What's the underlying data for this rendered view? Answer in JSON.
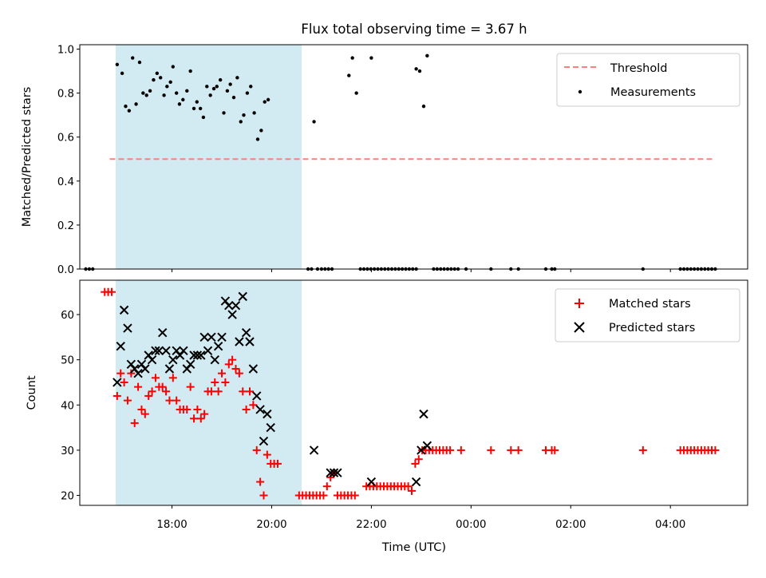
{
  "title": "Flux total observing time = 3.67 h",
  "xlabel": "Time (UTC)",
  "x_ticks": [
    "18:00",
    "20:00",
    "22:00",
    "00:00",
    "02:00",
    "04:00"
  ],
  "x_tick_hours": [
    18,
    20,
    22,
    24,
    26,
    28
  ],
  "xlim_hours": [
    16.15,
    29.55
  ],
  "shaded_interval_hours": [
    16.87,
    20.6
  ],
  "colors": {
    "shade": "#add8e6",
    "threshold": "#ff7f7f",
    "matched": "#ff0000",
    "predicted": "#000000",
    "measurement": "#000000"
  },
  "chart_data": [
    {
      "type": "scatter",
      "name": "ratio",
      "ylabel": "Matched/Predicted stars",
      "ylim": [
        0,
        1.02
      ],
      "y_ticks": [
        "0.0",
        "0.2",
        "0.4",
        "0.6",
        "0.8",
        "1.0"
      ],
      "y_tick_values": [
        0,
        0.2,
        0.4,
        0.6,
        0.8,
        1.0
      ],
      "legend": {
        "placement": "top-right",
        "entries": [
          "Threshold",
          "Measurements"
        ]
      },
      "threshold": {
        "name": "Threshold",
        "y": 0.5,
        "x_range": [
          16.75,
          28.9
        ]
      },
      "measurements": {
        "name": "Measurements",
        "points": [
          [
            16.9,
            0.93
          ],
          [
            17.0,
            0.89
          ],
          [
            17.07,
            0.74
          ],
          [
            17.14,
            0.72
          ],
          [
            17.21,
            0.96
          ],
          [
            17.28,
            0.75
          ],
          [
            17.35,
            0.94
          ],
          [
            17.42,
            0.8
          ],
          [
            17.49,
            0.79
          ],
          [
            17.56,
            0.81
          ],
          [
            17.63,
            0.86
          ],
          [
            17.7,
            0.89
          ],
          [
            17.77,
            0.87
          ],
          [
            17.84,
            0.79
          ],
          [
            17.9,
            0.83
          ],
          [
            17.97,
            0.85
          ],
          [
            18.02,
            0.92
          ],
          [
            18.09,
            0.8
          ],
          [
            18.15,
            0.75
          ],
          [
            18.22,
            0.77
          ],
          [
            18.3,
            0.81
          ],
          [
            18.37,
            0.9
          ],
          [
            18.44,
            0.73
          ],
          [
            18.5,
            0.76
          ],
          [
            18.57,
            0.73
          ],
          [
            18.63,
            0.69
          ],
          [
            18.7,
            0.83
          ],
          [
            18.77,
            0.79
          ],
          [
            18.84,
            0.82
          ],
          [
            18.9,
            0.83
          ],
          [
            18.97,
            0.86
          ],
          [
            19.04,
            0.71
          ],
          [
            19.11,
            0.81
          ],
          [
            19.17,
            0.84
          ],
          [
            19.24,
            0.78
          ],
          [
            19.31,
            0.87
          ],
          [
            19.38,
            0.67
          ],
          [
            19.44,
            0.7
          ],
          [
            19.51,
            0.8
          ],
          [
            19.58,
            0.83
          ],
          [
            19.65,
            0.71
          ],
          [
            19.72,
            0.59
          ],
          [
            19.79,
            0.63
          ],
          [
            19.86,
            0.76
          ],
          [
            19.93,
            0.77
          ],
          [
            20.85,
            0.67
          ],
          [
            21.55,
            0.88
          ],
          [
            21.62,
            0.96
          ],
          [
            21.7,
            0.8
          ],
          [
            22.0,
            0.96
          ],
          [
            22.9,
            0.91
          ],
          [
            22.97,
            0.9
          ],
          [
            23.05,
            0.74
          ],
          [
            23.12,
            0.97
          ],
          [
            16.27,
            0
          ],
          [
            16.34,
            0
          ],
          [
            16.41,
            0
          ],
          [
            20.73,
            0
          ],
          [
            20.8,
            0
          ],
          [
            20.92,
            0
          ],
          [
            21.0,
            0
          ],
          [
            21.07,
            0
          ],
          [
            21.14,
            0
          ],
          [
            21.21,
            0
          ],
          [
            21.78,
            0
          ],
          [
            21.85,
            0
          ],
          [
            21.92,
            0
          ],
          [
            21.99,
            0
          ],
          [
            22.06,
            0
          ],
          [
            22.13,
            0
          ],
          [
            22.2,
            0
          ],
          [
            22.27,
            0
          ],
          [
            22.34,
            0
          ],
          [
            22.41,
            0
          ],
          [
            22.48,
            0
          ],
          [
            22.55,
            0
          ],
          [
            22.62,
            0
          ],
          [
            22.69,
            0
          ],
          [
            22.76,
            0
          ],
          [
            22.83,
            0
          ],
          [
            22.9,
            0
          ],
          [
            23.25,
            0
          ],
          [
            23.32,
            0
          ],
          [
            23.39,
            0
          ],
          [
            23.46,
            0
          ],
          [
            23.53,
            0
          ],
          [
            23.6,
            0
          ],
          [
            23.67,
            0
          ],
          [
            23.74,
            0
          ],
          [
            23.9,
            0
          ],
          [
            24.4,
            0
          ],
          [
            24.8,
            0
          ],
          [
            24.95,
            0
          ],
          [
            25.5,
            0
          ],
          [
            25.62,
            0
          ],
          [
            25.68,
            0
          ],
          [
            27.45,
            0
          ],
          [
            28.2,
            0
          ],
          [
            28.27,
            0
          ],
          [
            28.34,
            0
          ],
          [
            28.41,
            0
          ],
          [
            28.48,
            0
          ],
          [
            28.55,
            0
          ],
          [
            28.62,
            0
          ],
          [
            28.69,
            0
          ],
          [
            28.76,
            0
          ],
          [
            28.83,
            0
          ],
          [
            28.9,
            0
          ]
        ]
      }
    },
    {
      "type": "scatter",
      "name": "counts",
      "ylabel": "Count",
      "ylim": [
        17.8,
        67.6
      ],
      "y_ticks": [
        "20",
        "30",
        "40",
        "50",
        "60"
      ],
      "y_tick_values": [
        20,
        30,
        40,
        50,
        60
      ],
      "legend": {
        "placement": "top-right",
        "entries": [
          "Matched stars",
          "Predicted stars"
        ]
      },
      "series": [
        {
          "name": "Matched stars",
          "marker": "plus",
          "points": [
            [
              16.65,
              65
            ],
            [
              16.72,
              65
            ],
            [
              16.79,
              65
            ],
            [
              16.9,
              42
            ],
            [
              16.97,
              47
            ],
            [
              17.04,
              45
            ],
            [
              17.11,
              41
            ],
            [
              17.18,
              47
            ],
            [
              17.25,
              36
            ],
            [
              17.32,
              44
            ],
            [
              17.39,
              39
            ],
            [
              17.46,
              38
            ],
            [
              17.53,
              42
            ],
            [
              17.6,
              43
            ],
            [
              17.67,
              46
            ],
            [
              17.74,
              44
            ],
            [
              17.81,
              44
            ],
            [
              17.88,
              43
            ],
            [
              17.95,
              41
            ],
            [
              18.02,
              46
            ],
            [
              18.09,
              41
            ],
            [
              18.16,
              39
            ],
            [
              18.23,
              39
            ],
            [
              18.3,
              39
            ],
            [
              18.37,
              44
            ],
            [
              18.44,
              37
            ],
            [
              18.51,
              39
            ],
            [
              18.58,
              37
            ],
            [
              18.65,
              38
            ],
            [
              18.72,
              43
            ],
            [
              18.79,
              43
            ],
            [
              18.86,
              45
            ],
            [
              18.93,
              43
            ],
            [
              19.0,
              47
            ],
            [
              19.07,
              45
            ],
            [
              19.14,
              49
            ],
            [
              19.21,
              50
            ],
            [
              19.28,
              48
            ],
            [
              19.35,
              47
            ],
            [
              19.42,
              43
            ],
            [
              19.49,
              39
            ],
            [
              19.56,
              43
            ],
            [
              19.63,
              40
            ],
            [
              19.7,
              30
            ],
            [
              19.77,
              23
            ],
            [
              19.84,
              20
            ],
            [
              19.91,
              29
            ],
            [
              19.98,
              27
            ],
            [
              20.05,
              27
            ],
            [
              20.12,
              27
            ],
            [
              20.55,
              20
            ],
            [
              20.62,
              20
            ],
            [
              20.69,
              20
            ],
            [
              20.76,
              20
            ],
            [
              20.83,
              20
            ],
            [
              20.9,
              20
            ],
            [
              20.97,
              20
            ],
            [
              21.04,
              20
            ],
            [
              21.11,
              22
            ],
            [
              21.18,
              24
            ],
            [
              21.25,
              25
            ],
            [
              21.32,
              20
            ],
            [
              21.39,
              20
            ],
            [
              21.46,
              20
            ],
            [
              21.53,
              20
            ],
            [
              21.6,
              20
            ],
            [
              21.67,
              20
            ],
            [
              21.9,
              22
            ],
            [
              21.97,
              22
            ],
            [
              22.04,
              22
            ],
            [
              22.11,
              22
            ],
            [
              22.18,
              22
            ],
            [
              22.25,
              22
            ],
            [
              22.32,
              22
            ],
            [
              22.39,
              22
            ],
            [
              22.46,
              22
            ],
            [
              22.53,
              22
            ],
            [
              22.6,
              22
            ],
            [
              22.67,
              22
            ],
            [
              22.74,
              22
            ],
            [
              22.81,
              21
            ],
            [
              22.88,
              27
            ],
            [
              22.95,
              28
            ],
            [
              23.02,
              30
            ],
            [
              23.09,
              30
            ],
            [
              23.16,
              30
            ],
            [
              23.23,
              30
            ],
            [
              23.3,
              30
            ],
            [
              23.37,
              30
            ],
            [
              23.44,
              30
            ],
            [
              23.51,
              30
            ],
            [
              23.58,
              30
            ],
            [
              23.8,
              30
            ],
            [
              24.4,
              30
            ],
            [
              24.8,
              30
            ],
            [
              24.95,
              30
            ],
            [
              25.5,
              30
            ],
            [
              25.62,
              30
            ],
            [
              25.68,
              30
            ],
            [
              27.45,
              30
            ],
            [
              28.2,
              30
            ],
            [
              28.27,
              30
            ],
            [
              28.34,
              30
            ],
            [
              28.41,
              30
            ],
            [
              28.48,
              30
            ],
            [
              28.55,
              30
            ],
            [
              28.62,
              30
            ],
            [
              28.69,
              30
            ],
            [
              28.76,
              30
            ],
            [
              28.83,
              30
            ],
            [
              28.9,
              30
            ]
          ]
        },
        {
          "name": "Predicted stars",
          "marker": "x",
          "points": [
            [
              16.9,
              45
            ],
            [
              16.97,
              53
            ],
            [
              17.04,
              61
            ],
            [
              17.11,
              57
            ],
            [
              17.18,
              49
            ],
            [
              17.25,
              48
            ],
            [
              17.32,
              47
            ],
            [
              17.39,
              49
            ],
            [
              17.46,
              48
            ],
            [
              17.53,
              51
            ],
            [
              17.6,
              50
            ],
            [
              17.67,
              52
            ],
            [
              17.74,
              52
            ],
            [
              17.81,
              56
            ],
            [
              17.88,
              52
            ],
            [
              17.95,
              48
            ],
            [
              18.02,
              50
            ],
            [
              18.09,
              52
            ],
            [
              18.16,
              51
            ],
            [
              18.23,
              52
            ],
            [
              18.3,
              48
            ],
            [
              18.37,
              49
            ],
            [
              18.44,
              51
            ],
            [
              18.51,
              51
            ],
            [
              18.58,
              51
            ],
            [
              18.65,
              55
            ],
            [
              18.72,
              52
            ],
            [
              18.79,
              55
            ],
            [
              18.86,
              50
            ],
            [
              18.93,
              53
            ],
            [
              19.0,
              55
            ],
            [
              19.07,
              63
            ],
            [
              19.14,
              62
            ],
            [
              19.21,
              60
            ],
            [
              19.28,
              62
            ],
            [
              19.35,
              54
            ],
            [
              19.42,
              64
            ],
            [
              19.49,
              56
            ],
            [
              19.56,
              54
            ],
            [
              19.63,
              48
            ],
            [
              19.7,
              42
            ],
            [
              19.77,
              39
            ],
            [
              19.84,
              32
            ],
            [
              19.91,
              38
            ],
            [
              19.98,
              35
            ],
            [
              20.85,
              30
            ],
            [
              21.18,
              25
            ],
            [
              21.25,
              25
            ],
            [
              21.32,
              25
            ],
            [
              22.0,
              23
            ],
            [
              22.9,
              23
            ],
            [
              23.0,
              30
            ],
            [
              23.05,
              38
            ],
            [
              23.12,
              31
            ]
          ]
        }
      ]
    }
  ]
}
